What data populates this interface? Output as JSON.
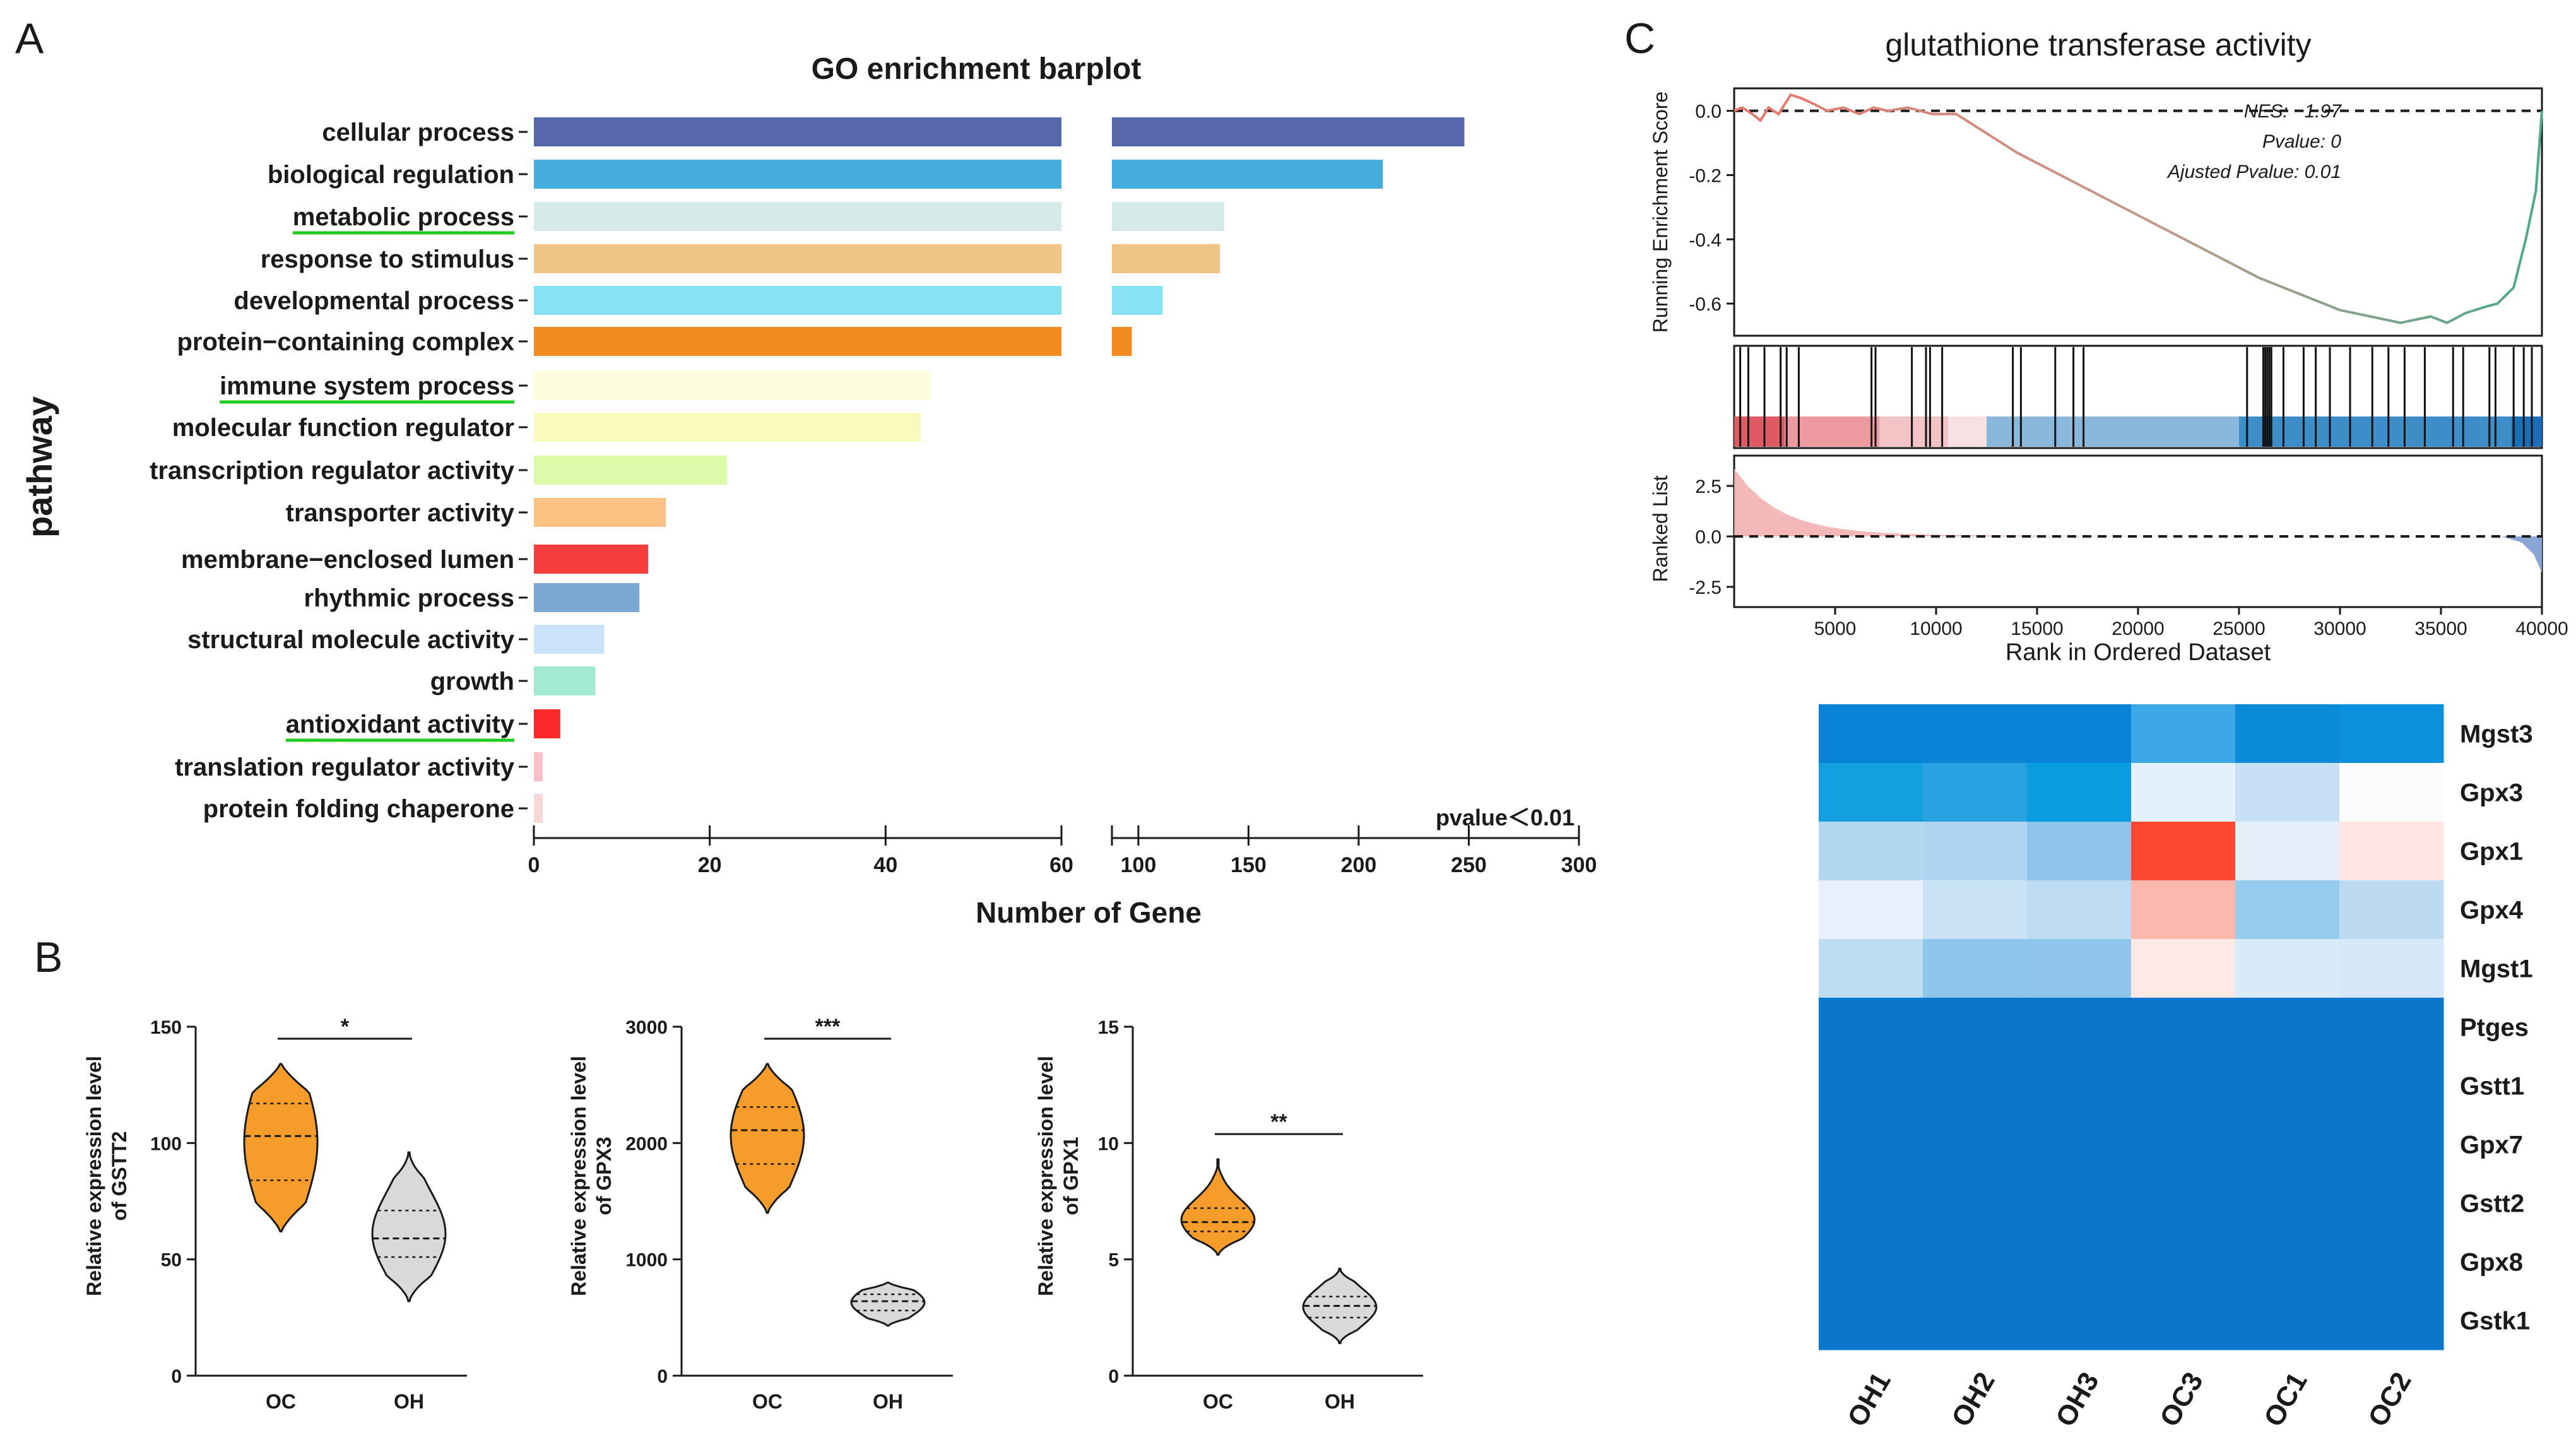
{
  "panels": {
    "a": "A",
    "b": "B",
    "c": "C"
  },
  "chart_data": [
    {
      "type": "bar",
      "panel": "A",
      "orientation": "horizontal",
      "title": "GO enrichment barplot",
      "xlabel": "Number of Gene",
      "ylabel": "pathway",
      "note": "pvalue＜0.01",
      "axis_break": true,
      "xlim_left": [
        0,
        60
      ],
      "xlim_right": [
        88,
        300
      ],
      "xticks_left": [
        0,
        20,
        40,
        60
      ],
      "xticks_right": [
        100,
        150,
        200,
        250,
        300
      ],
      "underlined": [
        "metabolic process",
        "immune system process",
        "antioxidant activity"
      ],
      "underline_color": "#22cc22",
      "categories": [
        "cellular process",
        "biological regulation",
        "metabolic process",
        "response to stimulus",
        "developmental process",
        "protein−containing complex",
        "immune system process",
        "molecular function regulator",
        "transcription regulator activity",
        "transporter activity",
        "membrane−enclosed lumen",
        "rhythmic process",
        "structural molecule activity",
        "growth",
        "antioxidant activity",
        "translation regulator activity",
        "protein folding chaperone"
      ],
      "values": [
        248,
        211,
        139,
        137,
        111,
        97,
        45,
        44,
        22,
        15,
        13,
        12,
        8,
        7,
        3,
        1,
        1
      ],
      "colors": [
        "#5668aa",
        "#45aede",
        "#d6eae8",
        "#f0c485",
        "#88e2f2",
        "#f28a1e",
        "#fefede",
        "#f8fbbb",
        "#ddf9aa",
        "#fdc183",
        "#f73c3c",
        "#7aa8d2",
        "#cce2f8",
        "#a3e9d3",
        "#fb2a2a",
        "#f9c0c7",
        "#fbd8d8"
      ]
    },
    {
      "type": "violin",
      "panel": "B",
      "ylabel": "Relative expression level of GSTT2",
      "ylabel_lines": [
        "Relative expression level",
        "of GSTT2"
      ],
      "ylim": [
        0,
        150
      ],
      "yticks": [
        0,
        50,
        100,
        150
      ],
      "categories": [
        "OC",
        "OH"
      ],
      "series": [
        {
          "name": "OC",
          "median": 103,
          "q1": 84,
          "q3": 117,
          "min": 62,
          "max": 134,
          "color": "#f59c2a"
        },
        {
          "name": "OH",
          "median": 59,
          "q1": 51,
          "q3": 71,
          "min": 32,
          "max": 96,
          "color": "#d9d9d9"
        }
      ],
      "significance": "*"
    },
    {
      "type": "violin",
      "panel": "B",
      "ylabel": "Relative expression level of GPX3",
      "ylabel_lines": [
        "Relative expression level",
        "of GPX3"
      ],
      "ylim": [
        0,
        3000
      ],
      "yticks": [
        0,
        1000,
        2000,
        3000
      ],
      "categories": [
        "OC",
        "OH"
      ],
      "series": [
        {
          "name": "OC",
          "median": 2110,
          "q1": 1820,
          "q3": 2310,
          "min": 1400,
          "max": 2680,
          "color": "#f59c2a"
        },
        {
          "name": "OH",
          "median": 640,
          "q1": 560,
          "q3": 700,
          "min": 430,
          "max": 800,
          "color": "#d9d9d9"
        }
      ],
      "significance": "***"
    },
    {
      "type": "violin",
      "panel": "B",
      "ylabel": "Relative expression level of GPX1",
      "ylabel_lines": [
        "Relative expression level",
        "of GPX1"
      ],
      "ylim": [
        0,
        15
      ],
      "yticks": [
        0,
        5,
        10,
        15
      ],
      "categories": [
        "OC",
        "OH"
      ],
      "series": [
        {
          "name": "OC",
          "median": 6.6,
          "q1": 6.2,
          "q3": 7.2,
          "min": 5.2,
          "max": 9.3,
          "color": "#f59c2a"
        },
        {
          "name": "OH",
          "median": 3.0,
          "q1": 2.5,
          "q3": 3.4,
          "min": 1.4,
          "max": 4.6,
          "color": "#d9d9d9"
        }
      ],
      "significance": "**"
    },
    {
      "type": "line",
      "panel": "C",
      "title": "glutathione transferase activity",
      "xlabel": "Rank in Ordered Dataset",
      "ylabel": "Running Enrichment Score",
      "ylabel_bottom": "Ranked List",
      "xlim": [
        0,
        40000
      ],
      "xticks": [
        5000,
        10000,
        15000,
        20000,
        25000,
        30000,
        35000,
        40000
      ],
      "es_ylim": [
        -0.7,
        0.07
      ],
      "es_yticks": [
        0.0,
        -0.2,
        -0.4,
        -0.6
      ],
      "rank_ylim": [
        -3.5,
        4
      ],
      "rank_yticks": [
        2.5,
        0.0,
        -2.5
      ],
      "stats": [
        "NES: −1.97",
        "Pvalue: 0",
        "Ajusted Pvalue: 0.01"
      ],
      "x": [
        0,
        400,
        900,
        1300,
        1700,
        2200,
        2800,
        3300,
        4000,
        4600,
        5400,
        6200,
        6900,
        7600,
        8600,
        9800,
        11000,
        14000,
        18000,
        22000,
        26000,
        30000,
        33000,
        34500,
        35300,
        36200,
        37200,
        37800,
        38600,
        39200,
        39700,
        40000
      ],
      "y": [
        0.0,
        0.01,
        -0.01,
        -0.03,
        0.01,
        -0.01,
        0.05,
        0.04,
        0.02,
        0.0,
        0.01,
        -0.01,
        0.01,
        0.0,
        0.01,
        -0.01,
        -0.01,
        -0.13,
        -0.26,
        -0.39,
        -0.52,
        -0.62,
        -0.66,
        -0.64,
        -0.66,
        -0.63,
        -0.61,
        -0.6,
        -0.55,
        -0.4,
        -0.25,
        0.0
      ],
      "hits": [
        300,
        700,
        1500,
        2300,
        2600,
        3200,
        6800,
        7000,
        8800,
        9500,
        9700,
        10300,
        13800,
        14200,
        15900,
        16800,
        17300,
        25400,
        26200,
        26300,
        26400,
        26500,
        26600,
        27200,
        28200,
        28800,
        29500,
        30500,
        31600,
        32400,
        33200,
        34200,
        35600,
        36100,
        37400,
        37700,
        38600,
        39100,
        39500
      ]
    },
    {
      "type": "heatmap",
      "panel": "C",
      "rows": [
        "Mgst3",
        "Gpx3",
        "Gpx1",
        "Gpx4",
        "Mgst1",
        "Ptges",
        "Gstt1",
        "Gpx7",
        "Gstt2",
        "Gpx8",
        "Gstk1"
      ],
      "columns": [
        "OH1",
        "OH2",
        "OH3",
        "OC3",
        "OC1",
        "OC2"
      ],
      "colors": [
        [
          "#0a82d6",
          "#0a82d6",
          "#0a82d6",
          "#3ca8e6",
          "#0a8ad8",
          "#0a90dc"
        ],
        [
          "#14a0e0",
          "#2aa2e2",
          "#0a9ce0",
          "#e4f0fc",
          "#c8e0f6",
          "#fafcfe"
        ],
        [
          "#b2d7f1",
          "#aed4f0",
          "#8ec4ec",
          "#fc4a32",
          "#e6f0fb",
          "#fde6e3"
        ],
        [
          "#e6f1fb",
          "#cae2f5",
          "#bddcf3",
          "#fdb8ae",
          "#97cbed",
          "#bcdaf2"
        ],
        [
          "#bdddf3",
          "#8ec5eb",
          "#90c6ec",
          "#fde9e6",
          "#d9eaf8",
          "#d6e8f7"
        ],
        [
          "#0a77cc",
          "#0a77cc",
          "#0a77cc",
          "#0a77cc",
          "#0a77cc",
          "#0a77cc"
        ],
        [
          "#0a77cc",
          "#0a77cc",
          "#0a77cc",
          "#0a77cc",
          "#0a77cc",
          "#0a77cc"
        ],
        [
          "#0a77cc",
          "#0a77cc",
          "#0a77cc",
          "#0a77cc",
          "#0a77cc",
          "#0a77cc"
        ],
        [
          "#0a77cc",
          "#0a77cc",
          "#0a77cc",
          "#0a77cc",
          "#0a77cc",
          "#0a77cc"
        ],
        [
          "#0a77cc",
          "#0a77cc",
          "#0a77cc",
          "#0a77cc",
          "#0a77cc",
          "#0a77cc"
        ],
        [
          "#0a77cc",
          "#0a77cc",
          "#0a77cc",
          "#0a77cc",
          "#0a77cc",
          "#0a77cc"
        ]
      ]
    }
  ]
}
